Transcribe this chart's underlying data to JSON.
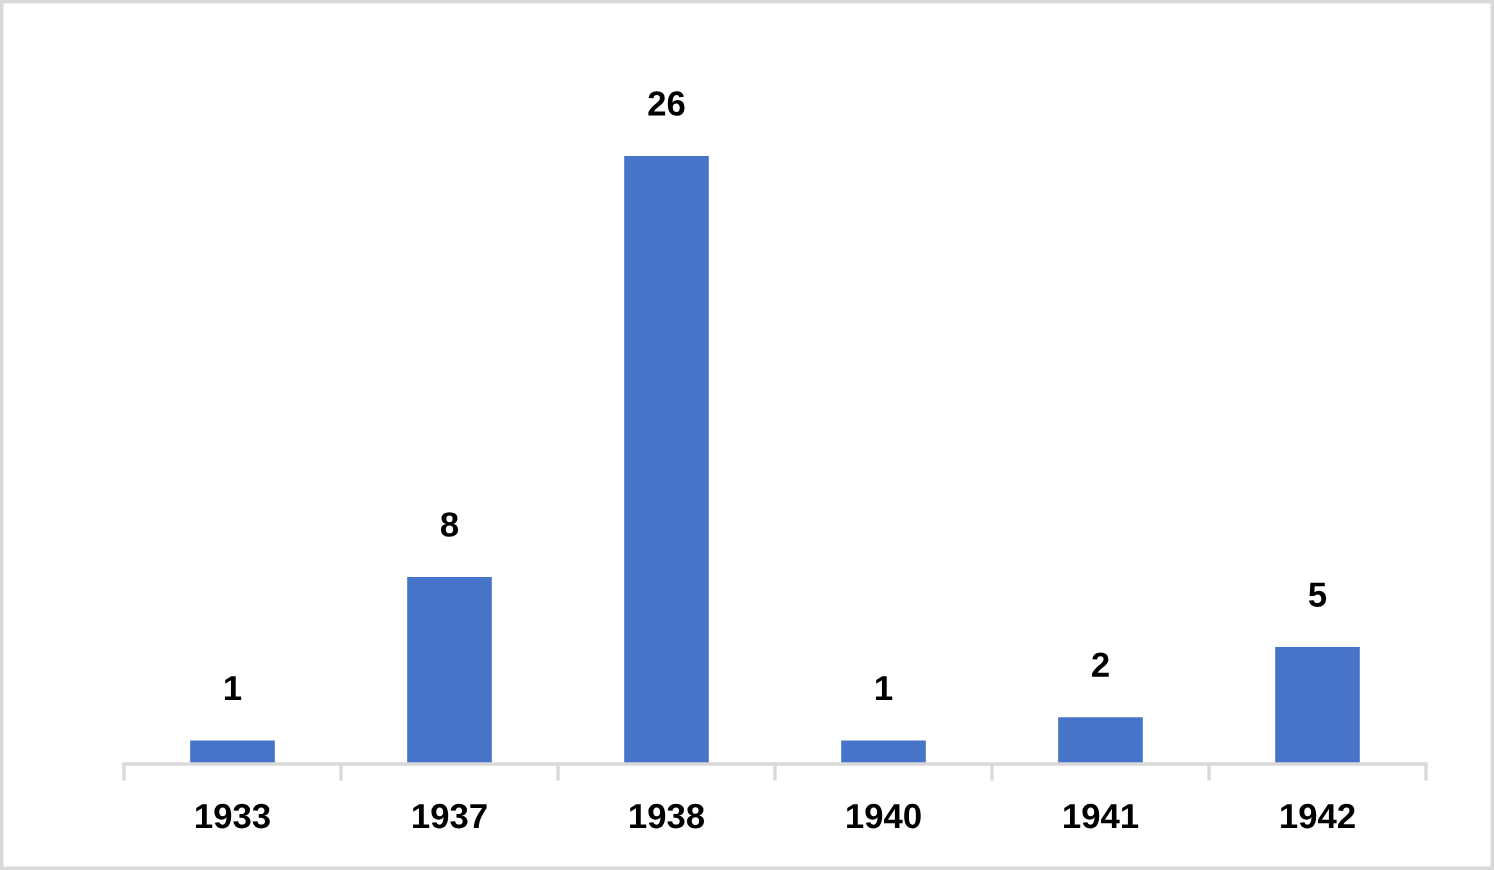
{
  "chart_data": {
    "type": "bar",
    "categories": [
      "1933",
      "1937",
      "1938",
      "1940",
      "1941",
      "1942"
    ],
    "values": [
      1,
      8,
      26,
      1,
      2,
      5
    ],
    "color": "#4774c8",
    "data_labels": true,
    "tick_labels": "x"
  }
}
